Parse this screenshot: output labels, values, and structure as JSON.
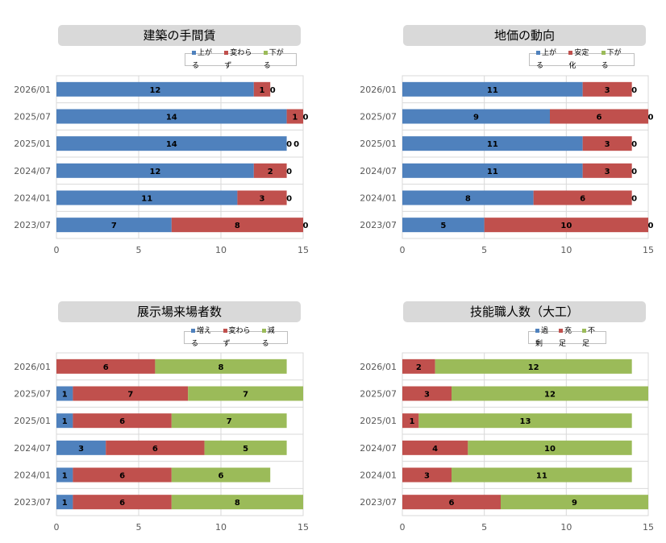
{
  "colors": {
    "blue": "#4f81bd",
    "red": "#c0504d",
    "green": "#9bbb59"
  },
  "chart_data": [
    {
      "type": "bar",
      "orientation": "horizontal",
      "stacked": true,
      "title": "建築の手間賃",
      "categories": [
        "2026/01",
        "2025/07",
        "2025/01",
        "2024/07",
        "2024/01",
        "2023/07"
      ],
      "series": [
        {
          "name": "上がる",
          "values": [
            12,
            14,
            14,
            12,
            11,
            7
          ]
        },
        {
          "name": "変わらず",
          "values": [
            1,
            1,
            0,
            2,
            3,
            8
          ]
        },
        {
          "name": "下がる",
          "values": [
            0,
            0,
            0,
            0,
            0,
            0
          ]
        }
      ],
      "xlim": [
        0,
        15
      ],
      "xticks": [
        0,
        5,
        10,
        15
      ],
      "grid": true,
      "legend": "top-right",
      "data_labels": true
    },
    {
      "type": "bar",
      "orientation": "horizontal",
      "stacked": true,
      "title": "地価の動向",
      "categories": [
        "2026/01",
        "2025/07",
        "2025/01",
        "2024/07",
        "2024/01",
        "2023/07"
      ],
      "series": [
        {
          "name": "上がる",
          "values": [
            11,
            9,
            11,
            11,
            8,
            5
          ]
        },
        {
          "name": "安定化",
          "values": [
            3,
            6,
            3,
            3,
            6,
            10
          ]
        },
        {
          "name": "下がる",
          "values": [
            0,
            0,
            0,
            0,
            0,
            0
          ]
        }
      ],
      "xlim": [
        0,
        15
      ],
      "xticks": [
        0,
        5,
        10,
        15
      ],
      "grid": true,
      "legend": "top-right",
      "data_labels": true
    },
    {
      "type": "bar",
      "orientation": "horizontal",
      "stacked": true,
      "title": "展示場来場者数",
      "categories": [
        "2026/01",
        "2025/07",
        "2025/01",
        "2024/07",
        "2024/01",
        "2023/07"
      ],
      "series": [
        {
          "name": "増える",
          "values": [
            0,
            1,
            1,
            3,
            1,
            1
          ]
        },
        {
          "name": "変わらず",
          "values": [
            6,
            7,
            6,
            6,
            6,
            6
          ]
        },
        {
          "name": "減る",
          "values": [
            8,
            7,
            7,
            5,
            6,
            8
          ]
        }
      ],
      "xlim": [
        0,
        15
      ],
      "xticks": [
        0,
        5,
        10,
        15
      ],
      "grid": true,
      "legend": "top-right",
      "data_labels": true
    },
    {
      "type": "bar",
      "orientation": "horizontal",
      "stacked": true,
      "title": "技能職人数（大工）",
      "categories": [
        "2026/01",
        "2025/07",
        "2025/01",
        "2024/07",
        "2024/01",
        "2023/07"
      ],
      "series": [
        {
          "name": "過剰",
          "values": [
            0,
            0,
            0,
            0,
            0,
            0
          ]
        },
        {
          "name": "充足",
          "values": [
            2,
            3,
            1,
            4,
            3,
            6
          ]
        },
        {
          "name": "不足",
          "values": [
            12,
            12,
            13,
            10,
            11,
            9
          ]
        }
      ],
      "xlim": [
        0,
        15
      ],
      "xticks": [
        0,
        5,
        10,
        15
      ],
      "grid": true,
      "legend": "top-right",
      "data_labels": true
    }
  ]
}
